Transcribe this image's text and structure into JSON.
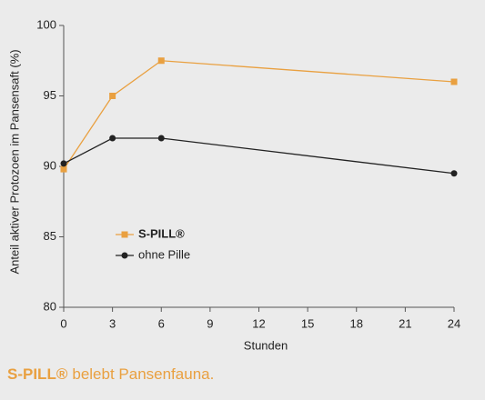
{
  "chart_data": {
    "type": "line",
    "y_label": "Anteil aktiver Protozoen im Pansensaft (%)",
    "x_label": "Stunden",
    "x": [
      0,
      3,
      6,
      24
    ],
    "series": [
      {
        "name": "S-PILL®",
        "color": "#e9a040",
        "marker": "square",
        "values": [
          89.8,
          95,
          97.5,
          96
        ]
      },
      {
        "name": "ohne Pille",
        "color": "#222222",
        "marker": "circle",
        "values": [
          90.2,
          92,
          92,
          89.5
        ]
      }
    ],
    "xlim": [
      0,
      24
    ],
    "xticks": [
      0,
      3,
      6,
      9,
      12,
      15,
      18,
      21,
      24
    ],
    "ylim": [
      80,
      100
    ],
    "yticks": [
      80,
      85,
      90,
      95,
      100
    ],
    "legend": "lower left",
    "caption": [
      "S-PILL®",
      "belebt Pansenfauna."
    ],
    "caption_color": "#e9a040"
  }
}
